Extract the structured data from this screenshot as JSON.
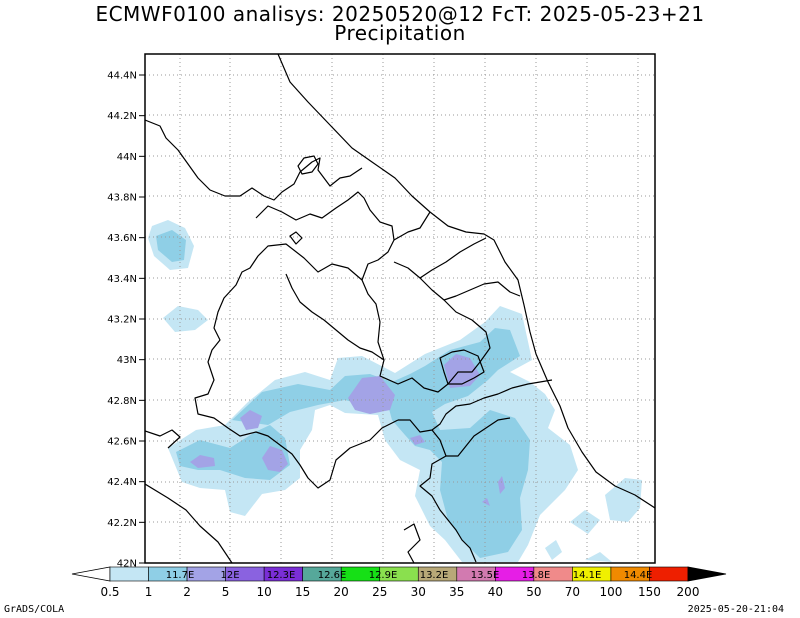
{
  "header": {
    "title_line1": "ECMWF0100 analisys: 20250520@12 FcT: 2025-05-23+21",
    "title_line2": "Precipitation"
  },
  "map": {
    "lat_ticks": [
      "44.4N",
      "44.2N",
      "44N",
      "43.8N",
      "43.6N",
      "43.4N",
      "43.2N",
      "43N",
      "42.8N",
      "42.6N",
      "42.4N",
      "42.2N",
      "42N"
    ],
    "lon_ticks": [
      "11.7E",
      "12E",
      "12.3E",
      "12.6E",
      "12.9E",
      "13.2E",
      "13.5E",
      "13.8E",
      "14.1E",
      "14.4E"
    ],
    "lat_range": [
      42.0,
      44.5
    ],
    "lon_range": [
      11.5,
      14.55
    ],
    "grid": "dotted",
    "variable": "Precipitation"
  },
  "colorbar": {
    "levels": [
      "0.5",
      "1",
      "2",
      "5",
      "10",
      "15",
      "20",
      "25",
      "30",
      "35",
      "40",
      "50",
      "70",
      "100",
      "150",
      "200"
    ],
    "colors": [
      "#c4e6f4",
      "#8fcfe6",
      "#a3a3e6",
      "#8a62e0",
      "#7a2ed6",
      "#56a89a",
      "#16e016",
      "#8ae04e",
      "#b8a878",
      "#d27ab0",
      "#e61ee6",
      "#f08a8a",
      "#f0f000",
      "#f08a00",
      "#ee1f00",
      "#8a0000"
    ],
    "under_color": "#ffffff",
    "over_color": "#000000"
  },
  "footer": {
    "left": "GrADS/COLA",
    "right": "2025-05-20-21:04"
  }
}
